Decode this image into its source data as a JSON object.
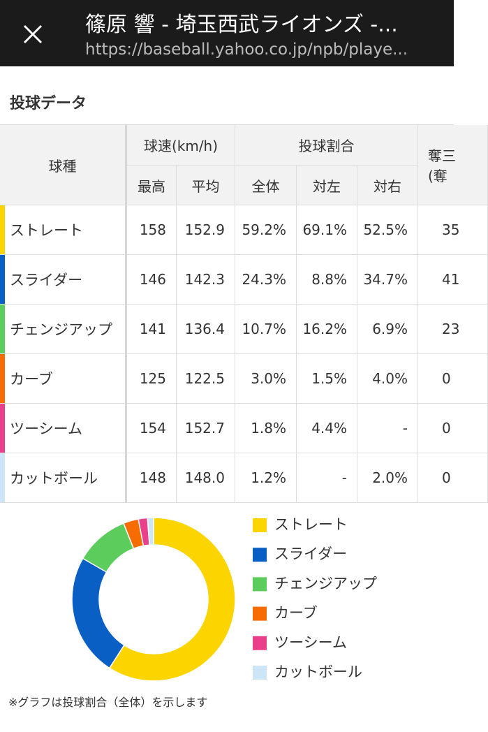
{
  "browser": {
    "title": "篠原 響 - 埼玉西武ライオンズ -...",
    "url": "https://baseball.yahoo.co.jp/npb/playe..."
  },
  "section_title": "投球データ",
  "table": {
    "header": {
      "pitch": "球種",
      "speed": "球速(km/h)",
      "ratio": "投球割合",
      "extra": [
        "奪三",
        "(奪"
      ],
      "sub": [
        "最高",
        "平均",
        "全体",
        "対左",
        "対右"
      ]
    },
    "rows": [
      [
        "ストレート",
        "158",
        "152.9",
        "59.2%",
        "69.1%",
        "52.5%",
        "35"
      ],
      [
        "スライダー",
        "146",
        "142.3",
        "24.3%",
        "8.8%",
        "34.7%",
        "41"
      ],
      [
        "チェンジアップ",
        "141",
        "136.4",
        "10.7%",
        "16.2%",
        "6.9%",
        "23"
      ],
      [
        "カーブ",
        "125",
        "122.5",
        "3.0%",
        "1.5%",
        "4.0%",
        "0"
      ],
      [
        "ツーシーム",
        "154",
        "152.7",
        "1.8%",
        "4.4%",
        "-",
        "0"
      ],
      [
        "カットボール",
        "148",
        "148.0",
        "1.2%",
        "-",
        "2.0%",
        "0"
      ]
    ]
  },
  "chart_data": {
    "type": "pie",
    "donut": true,
    "categories": [
      "ストレート",
      "スライダー",
      "チェンジアップ",
      "カーブ",
      "ツーシーム",
      "カットボール"
    ],
    "values": [
      59.2,
      24.3,
      10.7,
      3.0,
      1.8,
      1.2
    ],
    "colors": [
      "#fcd500",
      "#0a5fc4",
      "#5ccd5c",
      "#f76c00",
      "#ea3f8a",
      "#cce6f8"
    ]
  },
  "footnote": "※グラフは投球割合（全体）を示します"
}
